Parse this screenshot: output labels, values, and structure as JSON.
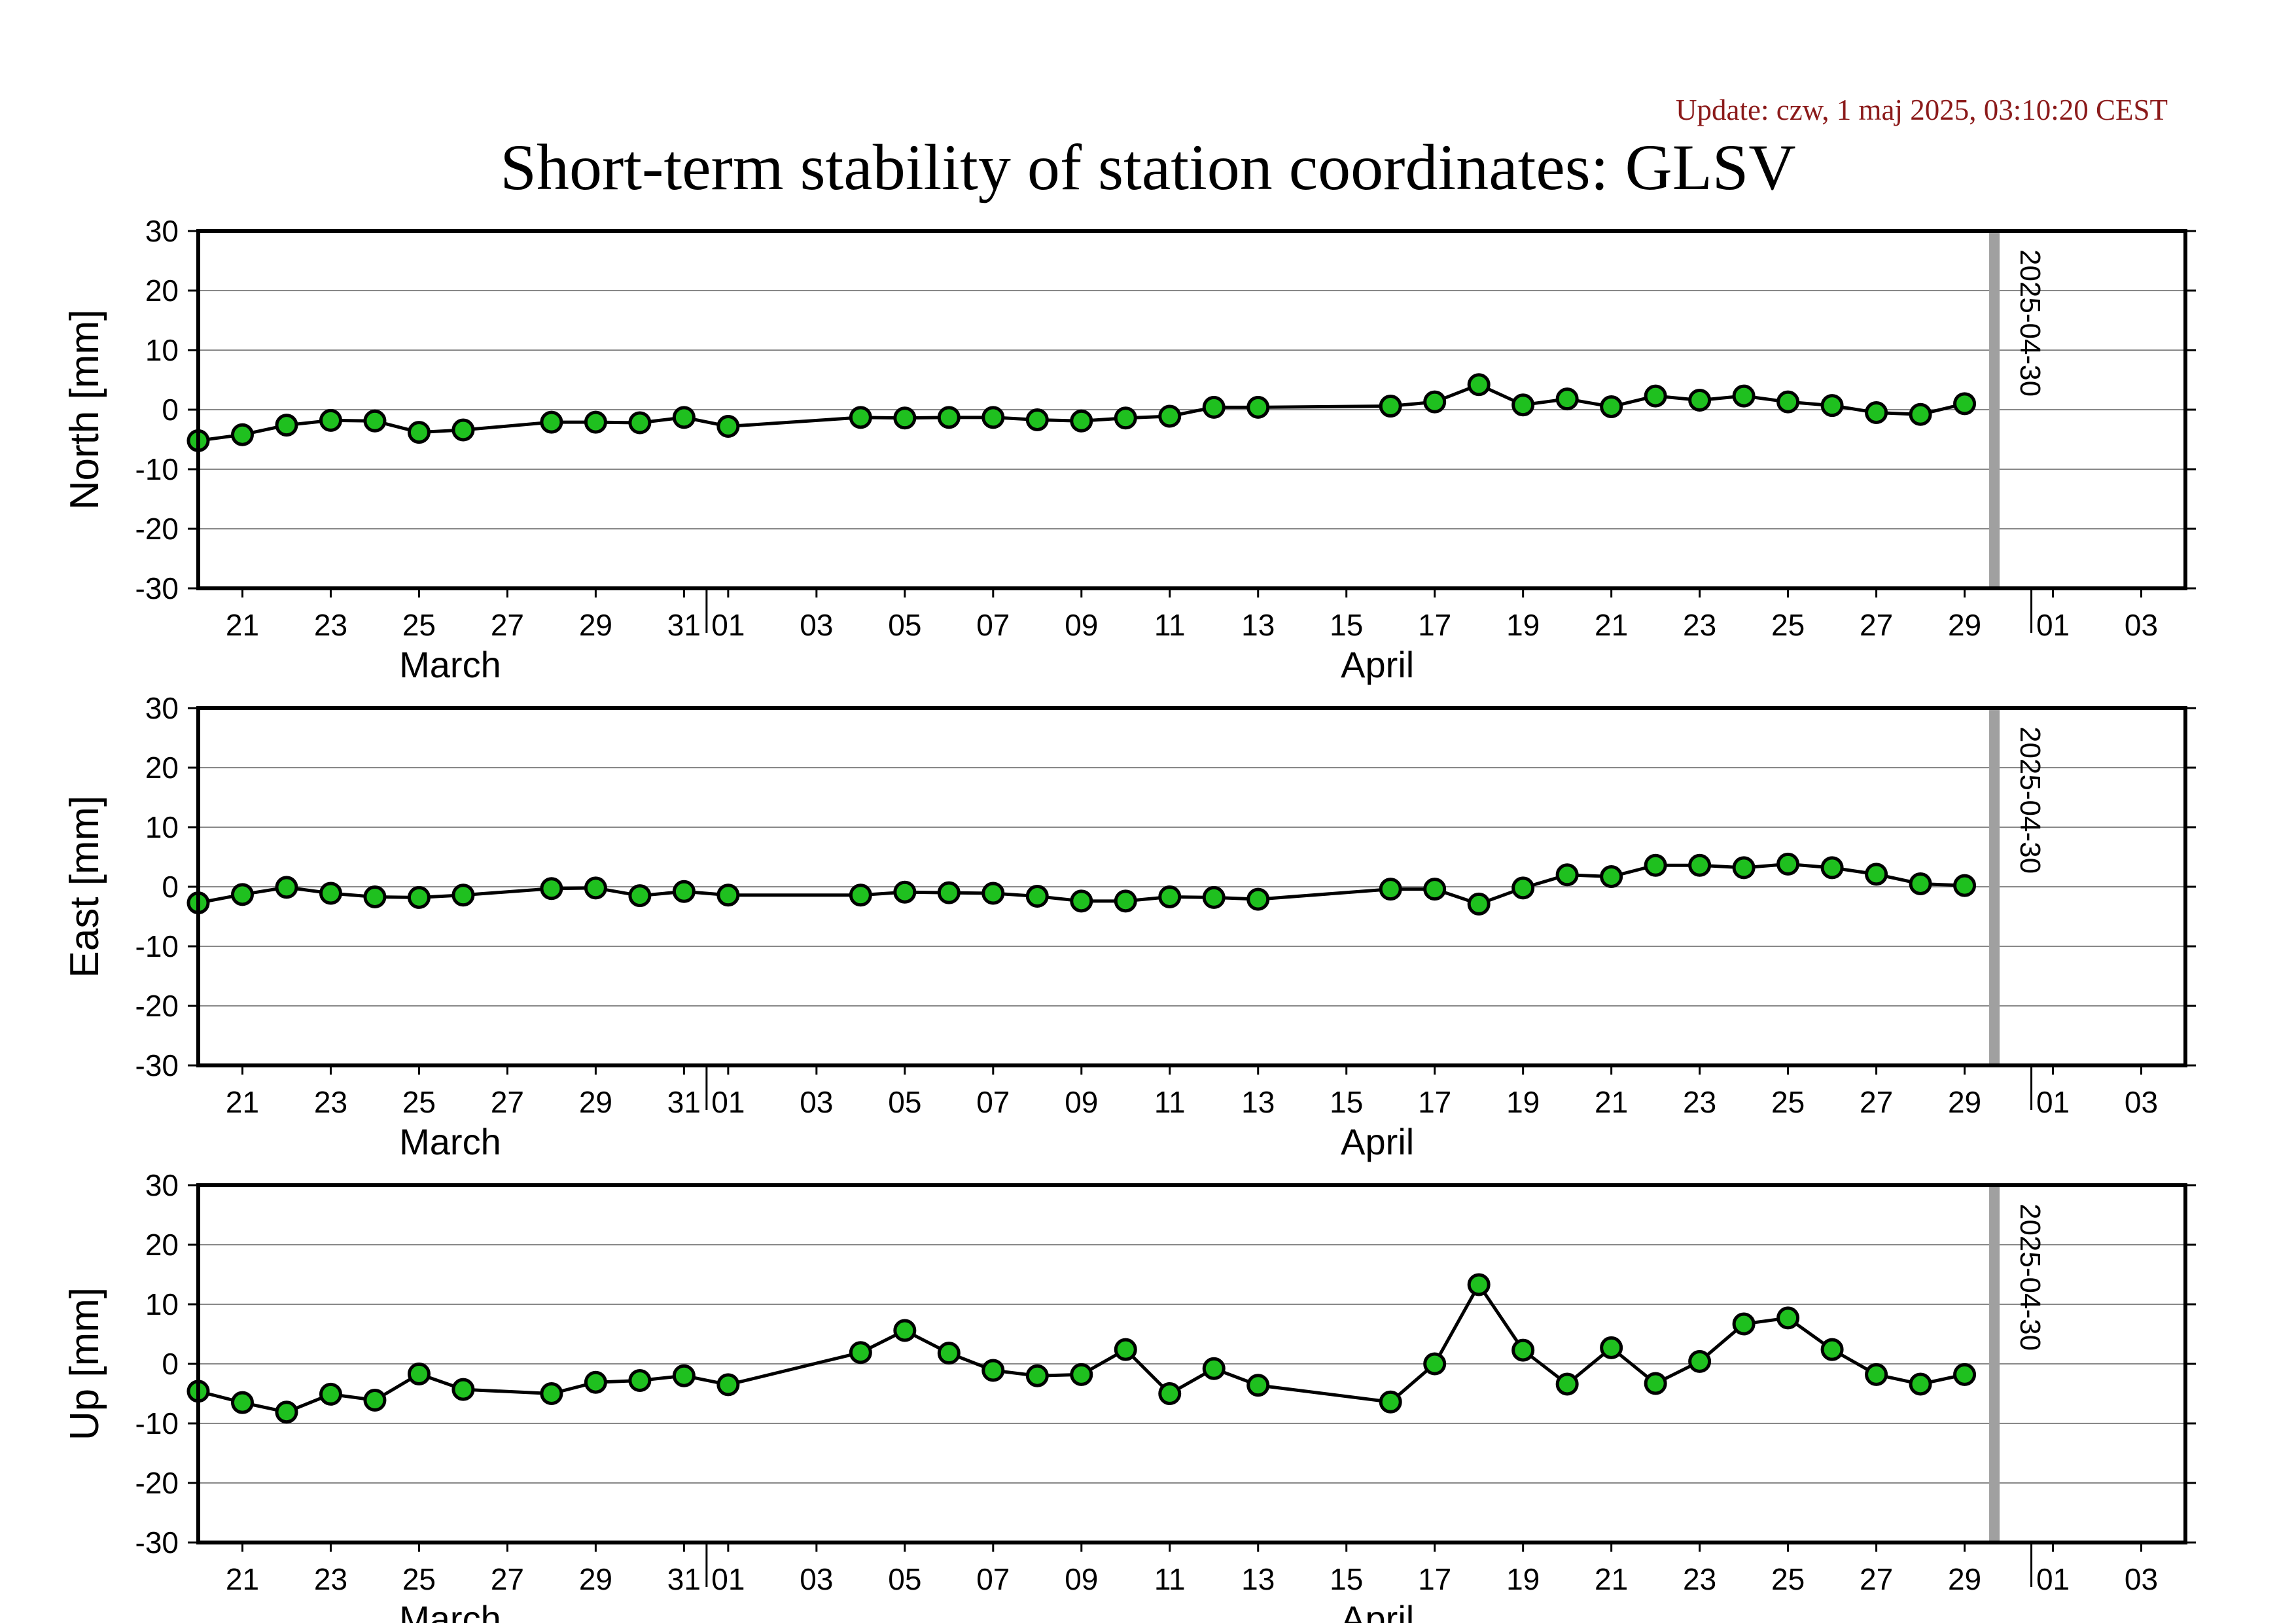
{
  "header": {
    "update": "Update: czw, 1 maj 2025, 03:10:20 CEST",
    "title": "Short-term stability of station coordinates: GLSV"
  },
  "colors": {
    "marker_fill": "#1fc01f",
    "marker_stroke": "#000000",
    "line": "#000000",
    "gridline": "#888888",
    "date_marker": "#a0a0a0"
  },
  "chart_data": [
    {
      "type": "line",
      "ylabel": "North [mm]",
      "ylim": [
        -30,
        30
      ],
      "yticks": [
        30,
        20,
        10,
        0,
        -10,
        -20,
        -30
      ],
      "xlim": [
        "2025-03-20",
        "2025-05-04"
      ],
      "xtick_labels": [
        "21",
        "23",
        "25",
        "27",
        "29",
        "31",
        "01",
        "03",
        "05",
        "07",
        "09",
        "11",
        "13",
        "15",
        "17",
        "19",
        "21",
        "23",
        "25",
        "27",
        "29",
        "01",
        "03"
      ],
      "month_labels": [
        "March",
        "April"
      ],
      "marker_date": "2025-04-30",
      "grid": true,
      "series": [
        {
          "points": [
            [
              "2025-03-20",
              -5.2
            ],
            [
              "2025-03-21",
              -4.2
            ],
            [
              "2025-03-22",
              -2.6
            ],
            [
              "2025-03-23",
              -1.8
            ],
            [
              "2025-03-24",
              -1.9
            ],
            [
              "2025-03-25",
              -3.8
            ],
            [
              "2025-03-26",
              -3.4
            ],
            [
              "2025-03-28",
              -2.1
            ],
            [
              "2025-03-29",
              -2.1
            ],
            [
              "2025-03-30",
              -2.2
            ],
            [
              "2025-03-31",
              -1.3
            ],
            [
              "2025-04-01",
              -2.8
            ],
            [
              "2025-04-04",
              -1.3
            ],
            [
              "2025-04-05",
              -1.4
            ],
            [
              "2025-04-06",
              -1.3
            ],
            [
              "2025-04-07",
              -1.3
            ],
            [
              "2025-04-08",
              -1.7
            ],
            [
              "2025-04-09",
              -1.9
            ],
            [
              "2025-04-10",
              -1.4
            ],
            [
              "2025-04-11",
              -1.1
            ],
            [
              "2025-04-12",
              0.4
            ],
            [
              "2025-04-13",
              0.4
            ],
            [
              "2025-04-16",
              0.6
            ],
            [
              "2025-04-17",
              1.3
            ],
            [
              "2025-04-18",
              4.2
            ],
            [
              "2025-04-19",
              0.8
            ],
            [
              "2025-04-20",
              1.8
            ],
            [
              "2025-04-21",
              0.5
            ],
            [
              "2025-04-22",
              2.3
            ],
            [
              "2025-04-23",
              1.6
            ],
            [
              "2025-04-24",
              2.3
            ],
            [
              "2025-04-25",
              1.3
            ],
            [
              "2025-04-26",
              0.7
            ],
            [
              "2025-04-27",
              -0.5
            ],
            [
              "2025-04-28",
              -0.8
            ],
            [
              "2025-04-29",
              1.0
            ]
          ]
        }
      ]
    },
    {
      "type": "line",
      "ylabel": "East [mm]",
      "ylim": [
        -30,
        30
      ],
      "yticks": [
        30,
        20,
        10,
        0,
        -10,
        -20,
        -30
      ],
      "xlim": [
        "2025-03-20",
        "2025-05-04"
      ],
      "xtick_labels": [
        "21",
        "23",
        "25",
        "27",
        "29",
        "31",
        "01",
        "03",
        "05",
        "07",
        "09",
        "11",
        "13",
        "15",
        "17",
        "19",
        "21",
        "23",
        "25",
        "27",
        "29",
        "01",
        "03"
      ],
      "month_labels": [
        "March",
        "April"
      ],
      "marker_date": "2025-04-30",
      "grid": true,
      "series": [
        {
          "points": [
            [
              "2025-03-20",
              -2.7
            ],
            [
              "2025-03-21",
              -1.3
            ],
            [
              "2025-03-22",
              -0.1
            ],
            [
              "2025-03-23",
              -1.1
            ],
            [
              "2025-03-24",
              -1.7
            ],
            [
              "2025-03-25",
              -1.8
            ],
            [
              "2025-03-26",
              -1.4
            ],
            [
              "2025-03-28",
              -0.3
            ],
            [
              "2025-03-29",
              -0.2
            ],
            [
              "2025-03-30",
              -1.5
            ],
            [
              "2025-03-31",
              -0.8
            ],
            [
              "2025-04-01",
              -1.4
            ],
            [
              "2025-04-04",
              -1.4
            ],
            [
              "2025-04-05",
              -0.9
            ],
            [
              "2025-04-06",
              -1.0
            ],
            [
              "2025-04-07",
              -1.1
            ],
            [
              "2025-04-08",
              -1.6
            ],
            [
              "2025-04-09",
              -2.4
            ],
            [
              "2025-04-10",
              -2.4
            ],
            [
              "2025-04-11",
              -1.7
            ],
            [
              "2025-04-12",
              -1.8
            ],
            [
              "2025-04-13",
              -2.1
            ],
            [
              "2025-04-16",
              -0.4
            ],
            [
              "2025-04-17",
              -0.4
            ],
            [
              "2025-04-18",
              -2.9
            ],
            [
              "2025-04-19",
              -0.2
            ],
            [
              "2025-04-20",
              2.0
            ],
            [
              "2025-04-21",
              1.7
            ],
            [
              "2025-04-22",
              3.6
            ],
            [
              "2025-04-23",
              3.6
            ],
            [
              "2025-04-24",
              3.2
            ],
            [
              "2025-04-25",
              3.8
            ],
            [
              "2025-04-26",
              3.2
            ],
            [
              "2025-04-27",
              2.1
            ],
            [
              "2025-04-28",
              0.5
            ],
            [
              "2025-04-29",
              0.2
            ]
          ]
        }
      ]
    },
    {
      "type": "line",
      "ylabel": "Up [mm]",
      "ylim": [
        -30,
        30
      ],
      "yticks": [
        30,
        20,
        10,
        0,
        -10,
        -20,
        -30
      ],
      "xlim": [
        "2025-03-20",
        "2025-05-04"
      ],
      "xtick_labels": [
        "21",
        "23",
        "25",
        "27",
        "29",
        "31",
        "01",
        "03",
        "05",
        "07",
        "09",
        "11",
        "13",
        "15",
        "17",
        "19",
        "21",
        "23",
        "25",
        "27",
        "29",
        "01",
        "03"
      ],
      "month_labels": [
        "March",
        "April"
      ],
      "marker_date": "2025-04-30",
      "grid": true,
      "series": [
        {
          "points": [
            [
              "2025-03-20",
              -4.6
            ],
            [
              "2025-03-21",
              -6.5
            ],
            [
              "2025-03-22",
              -8.1
            ],
            [
              "2025-03-23",
              -5.1
            ],
            [
              "2025-03-24",
              -6.1
            ],
            [
              "2025-03-25",
              -1.7
            ],
            [
              "2025-03-26",
              -4.3
            ],
            [
              "2025-03-28",
              -5.0
            ],
            [
              "2025-03-29",
              -3.1
            ],
            [
              "2025-03-30",
              -2.8
            ],
            [
              "2025-03-31",
              -2.0
            ],
            [
              "2025-04-01",
              -3.5
            ],
            [
              "2025-04-04",
              1.9
            ],
            [
              "2025-04-05",
              5.6
            ],
            [
              "2025-04-06",
              1.8
            ],
            [
              "2025-04-07",
              -1.1
            ],
            [
              "2025-04-08",
              -2.0
            ],
            [
              "2025-04-09",
              -1.8
            ],
            [
              "2025-04-10",
              2.4
            ],
            [
              "2025-04-11",
              -5.0
            ],
            [
              "2025-04-12",
              -0.8
            ],
            [
              "2025-04-13",
              -3.6
            ],
            [
              "2025-04-16",
              -6.4
            ],
            [
              "2025-04-17",
              0.0
            ],
            [
              "2025-04-18",
              13.3
            ],
            [
              "2025-04-19",
              2.3
            ],
            [
              "2025-04-20",
              -3.4
            ],
            [
              "2025-04-21",
              2.7
            ],
            [
              "2025-04-22",
              -3.3
            ],
            [
              "2025-04-23",
              0.4
            ],
            [
              "2025-04-24",
              6.7
            ],
            [
              "2025-04-25",
              7.7
            ],
            [
              "2025-04-26",
              2.4
            ],
            [
              "2025-04-27",
              -1.8
            ],
            [
              "2025-04-28",
              -3.4
            ],
            [
              "2025-04-29",
              -1.8
            ]
          ]
        }
      ]
    }
  ]
}
